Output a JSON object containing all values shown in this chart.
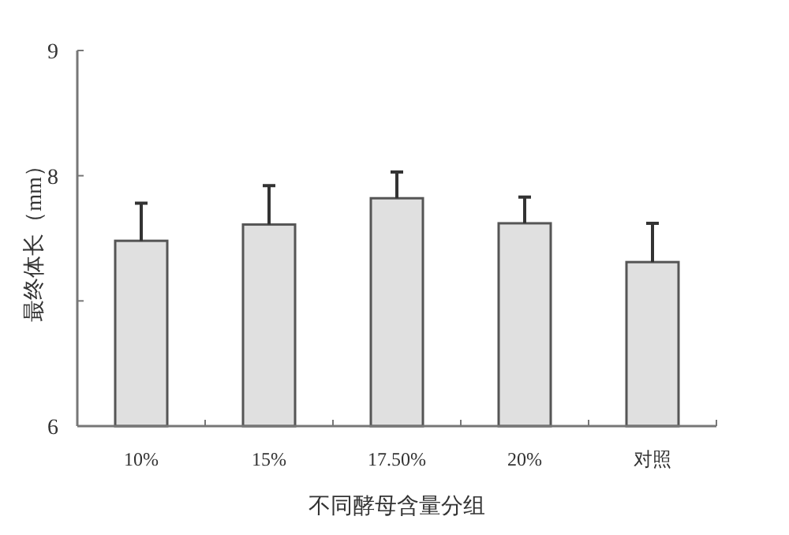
{
  "chart_data": {
    "type": "bar",
    "xlabel": "不同酵母含量分组",
    "ylabel": "最终体长（mm）",
    "categories": [
      "10%",
      "15%",
      "17.50%",
      "20%",
      "对照"
    ],
    "values": [
      7.48,
      7.61,
      7.82,
      7.62,
      7.31
    ],
    "errors": [
      [
        7.48,
        7.78
      ],
      [
        7.61,
        7.92
      ],
      [
        7.82,
        8.03
      ],
      [
        7.62,
        7.83
      ],
      [
        7.31,
        7.62
      ]
    ],
    "color": "#e0e0e0",
    "ylim": [
      6,
      9
    ],
    "yticks": [
      6,
      {
        "value": 7,
        "label": null
      },
      8,
      9
    ],
    "grid": false
  }
}
